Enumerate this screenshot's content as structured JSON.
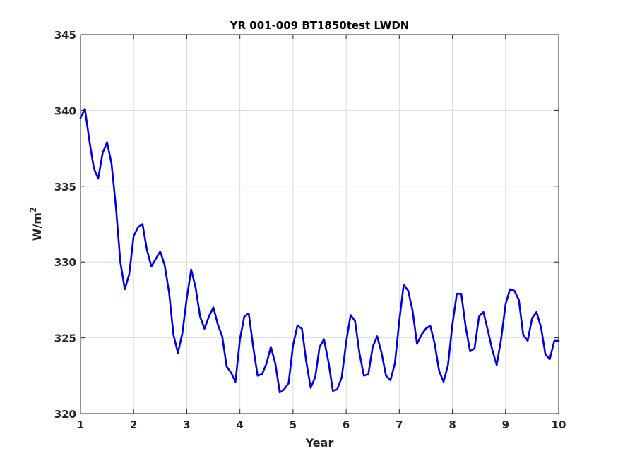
{
  "chart_data": {
    "type": "line",
    "title": "YR 001-009 BT1850test LWDN",
    "xlabel": "Year",
    "ylabel": "W/m",
    "ylabel_superscript": "2",
    "xlim": [
      1,
      10
    ],
    "ylim": [
      320,
      345
    ],
    "xticks": [
      "1",
      "2",
      "3",
      "4",
      "5",
      "6",
      "7",
      "8",
      "9",
      "10"
    ],
    "yticks": [
      "320",
      "325",
      "330",
      "335",
      "340",
      "345"
    ],
    "grid": true,
    "series": [
      {
        "color": "#0000e6",
        "x": [
          1.0,
          1.083,
          1.167,
          1.25,
          1.333,
          1.417,
          1.5,
          1.583,
          1.667,
          1.75,
          1.833,
          1.917,
          2.0,
          2.083,
          2.167,
          2.25,
          2.333,
          2.417,
          2.5,
          2.583,
          2.667,
          2.75,
          2.833,
          2.917,
          3.0,
          3.083,
          3.167,
          3.25,
          3.333,
          3.417,
          3.5,
          3.583,
          3.667,
          3.75,
          3.833,
          3.917,
          4.0,
          4.083,
          4.167,
          4.25,
          4.333,
          4.417,
          4.5,
          4.583,
          4.667,
          4.75,
          4.833,
          4.917,
          5.0,
          5.083,
          5.167,
          5.25,
          5.333,
          5.417,
          5.5,
          5.583,
          5.667,
          5.75,
          5.833,
          5.917,
          6.0,
          6.083,
          6.167,
          6.25,
          6.333,
          6.417,
          6.5,
          6.583,
          6.667,
          6.75,
          6.833,
          6.917,
          7.0,
          7.083,
          7.167,
          7.25,
          7.333,
          7.417,
          7.5,
          7.583,
          7.667,
          7.75,
          7.833,
          7.917,
          8.0,
          8.083,
          8.167,
          8.25,
          8.333,
          8.417,
          8.5,
          8.583,
          8.667,
          8.75,
          8.833,
          8.917,
          9.0,
          9.083,
          9.167,
          9.25,
          9.333,
          9.417,
          9.5,
          9.583,
          9.667,
          9.75,
          9.833,
          9.917,
          10.0
        ],
        "y": [
          339.5,
          340.1,
          338.0,
          336.2,
          335.5,
          337.2,
          337.9,
          336.5,
          333.6,
          330.0,
          328.2,
          329.2,
          331.7,
          332.3,
          332.5,
          330.8,
          329.7,
          330.2,
          330.7,
          329.8,
          328.0,
          325.2,
          324.0,
          325.3,
          327.6,
          329.5,
          328.3,
          326.4,
          325.6,
          326.4,
          327.0,
          325.9,
          325.1,
          323.1,
          322.7,
          322.1,
          324.9,
          326.4,
          326.6,
          324.4,
          322.5,
          322.6,
          323.3,
          324.4,
          323.3,
          321.4,
          321.6,
          322.0,
          324.5,
          325.8,
          325.6,
          323.4,
          321.7,
          322.4,
          324.4,
          324.9,
          323.4,
          321.5,
          321.6,
          322.4,
          324.7,
          326.5,
          326.1,
          324.0,
          322.5,
          322.6,
          324.4,
          325.1,
          324.0,
          322.5,
          322.2,
          323.3,
          326.1,
          328.5,
          328.1,
          326.8,
          324.6,
          325.2,
          325.6,
          325.8,
          324.6,
          322.8,
          322.1,
          323.2,
          325.9,
          327.9,
          327.9,
          325.7,
          324.1,
          324.3,
          326.4,
          326.7,
          325.5,
          324.2,
          323.2,
          324.9,
          327.2,
          328.2,
          328.1,
          327.5,
          325.2,
          324.8,
          326.3,
          326.7,
          325.7,
          323.9,
          323.6,
          324.8,
          324.8
        ]
      }
    ]
  }
}
